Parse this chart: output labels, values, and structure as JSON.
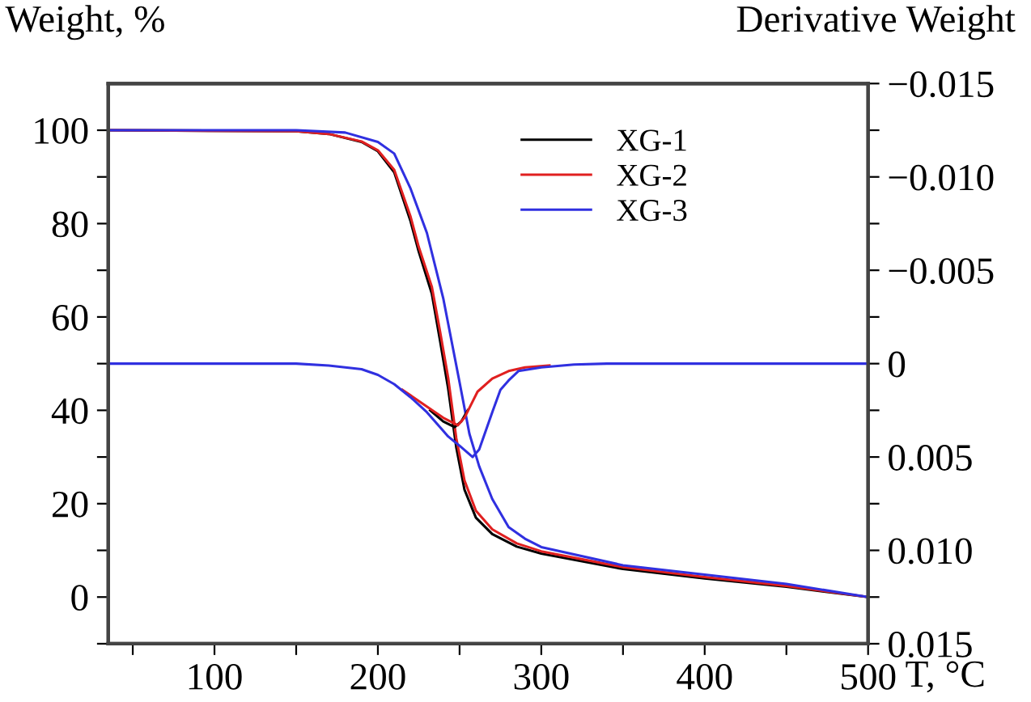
{
  "chart_data": {
    "type": "line",
    "ylabel": "Weight, %",
    "y2label": "Derivative Weight",
    "xlabel": "T, °C",
    "xlim": [
      35,
      500
    ],
    "ylim": [
      -10,
      110
    ],
    "y2lim": [
      0.015,
      -0.015
    ],
    "xticks": [
      {
        "value": 50,
        "label": null
      },
      100,
      {
        "value": 150,
        "label": null
      },
      200,
      {
        "value": 250,
        "label": null
      },
      300,
      {
        "value": 350,
        "label": null
      },
      400,
      {
        "value": 450,
        "label": null
      },
      500
    ],
    "yticks": [
      {
        "value": -10,
        "label": null
      },
      0,
      {
        "value": 10,
        "label": null
      },
      20,
      {
        "value": 30,
        "label": null
      },
      40,
      {
        "value": 50,
        "label": null
      },
      60,
      {
        "value": 70,
        "label": null
      },
      80,
      {
        "value": 90,
        "label": null
      },
      100
    ],
    "y2ticks": [
      {
        "value": -0.015,
        "label": "−0.015"
      },
      {
        "value": -0.0125,
        "label": null
      },
      {
        "value": -0.01,
        "label": "−0.010"
      },
      {
        "value": -0.0075,
        "label": null
      },
      {
        "value": -0.005,
        "label": "−0.005"
      },
      {
        "value": -0.0025,
        "label": null
      },
      0,
      {
        "value": 0.0025,
        "label": null
      },
      0.005,
      {
        "value": 0.0075,
        "label": null
      },
      {
        "value": 0.01,
        "label": "0.010"
      },
      {
        "value": 0.0125,
        "label": null
      },
      0.015
    ],
    "legend": "top right",
    "grid": false,
    "series": [
      {
        "name": "XG-1",
        "color": "#000000",
        "x": [
          35,
          150,
          170,
          190,
          200,
          210,
          220,
          225,
          233,
          238,
          243,
          248,
          253,
          260,
          270,
          285,
          300,
          350,
          400,
          450,
          500
        ],
        "values": [
          100,
          99.8,
          99.2,
          97.5,
          95.5,
          91,
          80.5,
          74,
          65,
          55,
          44.7,
          32,
          23,
          17,
          13.5,
          10.8,
          9.3,
          6,
          4,
          2.2,
          0
        ]
      },
      {
        "name": "XG-2",
        "color": "#e02020",
        "x": [
          35,
          150,
          170,
          190,
          200,
          210,
          220,
          225,
          233,
          238,
          243,
          248,
          253,
          260,
          270,
          285,
          300,
          350,
          400,
          450,
          500
        ],
        "values": [
          100,
          99.8,
          99.2,
          97.6,
          95.7,
          91.5,
          81.5,
          75,
          66.5,
          57,
          47,
          34,
          25,
          18.5,
          14.5,
          11.5,
          9.8,
          6.4,
          4.3,
          2.4,
          0
        ]
      },
      {
        "name": "XG-3",
        "color": "#3030e0",
        "x": [
          35,
          150,
          180,
          200,
          210,
          220,
          230,
          240,
          245,
          250,
          256,
          262,
          270,
          280,
          290,
          300,
          350,
          400,
          450,
          500
        ],
        "values": [
          100,
          100,
          99.5,
          97.5,
          95,
          87.5,
          78,
          64,
          55,
          46,
          35,
          28,
          21,
          15,
          12.5,
          10.7,
          6.8,
          4.8,
          2.8,
          0
        ]
      },
      {
        "color": "#000000",
        "axis": "y2",
        "x": [
          232,
          240,
          247,
          251,
          255
        ],
        "values": [
          0.0025,
          0.0031,
          0.0034,
          0.0031,
          0.0025
        ]
      },
      {
        "color": "#e02020",
        "axis": "y2",
        "x": [
          215,
          230,
          240,
          249,
          253,
          257,
          261,
          270,
          280,
          290,
          305
        ],
        "values": [
          0.0014,
          0.0023,
          0.0029,
          0.0033,
          0.0029,
          0.0022,
          0.0015,
          0.0008,
          0.0004,
          0.0002,
          0.0001
        ]
      },
      {
        "color": "#3030e0",
        "axis": "y2",
        "x": [
          35,
          150,
          170,
          190,
          200,
          210,
          220,
          230,
          240,
          243,
          250,
          258,
          262,
          266,
          270,
          275,
          280,
          286,
          300,
          320,
          340,
          500
        ],
        "values": [
          0,
          0,
          0.0001,
          0.0003,
          0.0006,
          0.0011,
          0.0018,
          0.0026,
          0.0036,
          0.0039,
          0.0044,
          0.005,
          0.0046,
          0.0036,
          0.0026,
          0.0014,
          0.0009,
          0.0004,
          0.0002,
          5e-05,
          0,
          0
        ]
      }
    ]
  }
}
